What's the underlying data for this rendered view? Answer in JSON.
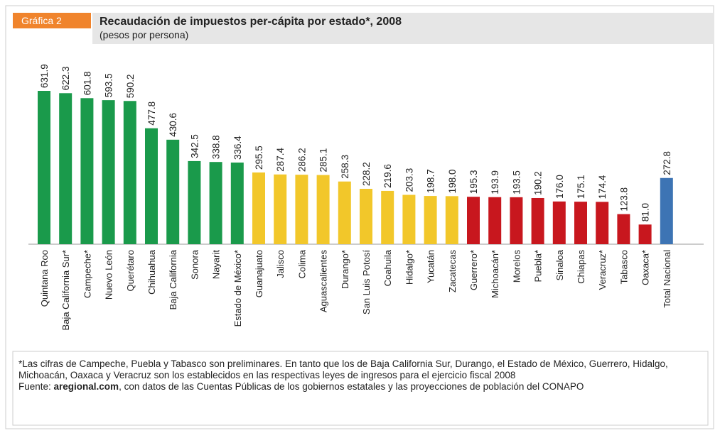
{
  "chart_data": {
    "type": "bar",
    "badge": "Gráfica 2",
    "title": "Recaudación de impuestos per-cápita por estado*, 2008",
    "subtitle": "(pesos por persona)",
    "categories": [
      "Quintana Roo",
      "Baja California Sur*",
      "Campeche*",
      "Nuevo León",
      "Querétaro",
      "Chihuahua",
      "Baja California",
      "Sonora",
      "Nayarit",
      "Estado de México*",
      "Guanajuato",
      "Jalisco",
      "Colima",
      "Aguascalientes",
      "Durango*",
      "San Luis Potosí",
      "Coahuila",
      "Hidalgo*",
      "Yucatán",
      "Zacatecas",
      "Guerrero*",
      "Michoacán*",
      "Morelos",
      "Puebla*",
      "Sinaloa",
      "Chiapas",
      "Veracruz*",
      "Tabasco",
      "Oaxaca*",
      "Total Nacional"
    ],
    "values": [
      631.9,
      622.3,
      601.8,
      593.5,
      590.2,
      477.8,
      430.6,
      342.5,
      338.8,
      336.4,
      295.5,
      287.4,
      286.2,
      285.1,
      258.3,
      228.2,
      219.6,
      203.3,
      198.7,
      198.0,
      195.3,
      193.9,
      193.5,
      190.2,
      176.0,
      175.1,
      174.4,
      123.8,
      81.0,
      272.8
    ],
    "value_labels": [
      "631.9",
      "622.3",
      "601.8",
      "593.5",
      "590.2",
      "477.8",
      "430.6",
      "342.5",
      "338.8",
      "336.4",
      "295.5",
      "287.4",
      "286.2",
      "285.1",
      "258.3",
      "228.2",
      "219.6",
      "203.3",
      "198.7",
      "198.0",
      "195.3",
      "193.9",
      "193.5",
      "190.2",
      "176.0",
      "175.1",
      "174.4",
      "123.8",
      "81.0",
      "272.8"
    ],
    "colors": [
      "#1a9a4b",
      "#1a9a4b",
      "#1a9a4b",
      "#1a9a4b",
      "#1a9a4b",
      "#1a9a4b",
      "#1a9a4b",
      "#1a9a4b",
      "#1a9a4b",
      "#1a9a4b",
      "#f2c72a",
      "#f2c72a",
      "#f2c72a",
      "#f2c72a",
      "#f2c72a",
      "#f2c72a",
      "#f2c72a",
      "#f2c72a",
      "#f2c72a",
      "#f2c72a",
      "#c8171e",
      "#c8171e",
      "#c8171e",
      "#c8171e",
      "#c8171e",
      "#c8171e",
      "#c8171e",
      "#c8171e",
      "#c8171e",
      "#3d74b4"
    ],
    "note": "*Las cifras de Campeche, Puebla y Tabasco son preliminares. En tanto que los de Baja California Sur, Durango, el Estado de México, Guerrero, Hidalgo, Michoacán, Oaxaca y Veracruz son los establecidos en las respectivas leyes de ingresos para el ejercicio fiscal 2008",
    "source": [
      "Fuente: ",
      "aregional.com",
      ", con datos de las Cuentas Públicas de los gobiernos estatales y las proyecciones de población del CONAPO"
    ]
  }
}
